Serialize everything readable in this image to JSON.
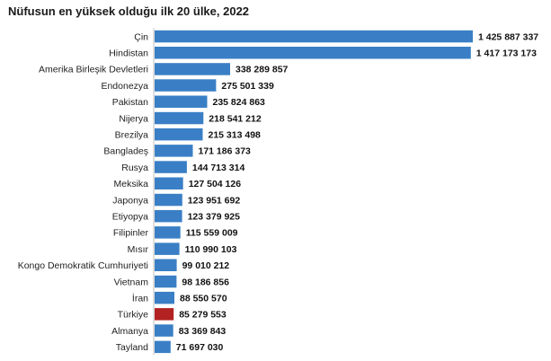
{
  "chart_data": {
    "type": "bar",
    "orientation": "horizontal",
    "title": "Nüfusun en yüksek olduğu ilk 20 ülke, 2022",
    "xlabel": "",
    "ylabel": "",
    "grid": false,
    "legend": "none",
    "xlim": [
      0,
      1425887337
    ],
    "colors": {
      "default": "#3a7fc5",
      "highlight": "#b22222"
    },
    "categories": [
      "Çin",
      "Hindistan",
      "Amerika Birleşik Devletleri",
      "Endonezya",
      "Pakistan",
      "Nijerya",
      "Brezilya",
      "Bangladeş",
      "Rusya",
      "Meksika",
      "Japonya",
      "Etiyopya",
      "Filipinler",
      "Mısır",
      "Kongo Demokratik Cumhuriyeti",
      "Vietnam",
      "İran",
      "Türkiye",
      "Almanya",
      "Tayland"
    ],
    "values": [
      1425887337,
      1417173173,
      338289857,
      275501339,
      235824863,
      218541212,
      215313498,
      171186373,
      144713314,
      127504126,
      123951692,
      123379925,
      115559009,
      110990103,
      99010212,
      98186856,
      88550570,
      85279553,
      83369843,
      71697030
    ],
    "value_labels": [
      "1 425 887 337",
      "1 417 173 173",
      "338 289 857",
      "275 501 339",
      "235 824 863",
      "218 541 212",
      "215 313 498",
      "171 186 373",
      "144 713 314",
      "127 504 126",
      "123 951 692",
      "123 379 925",
      "115 559 009",
      "110 990 103",
      "99 010 212",
      "98 186 856",
      "88 550 570",
      "85 279 553",
      "83 369 843",
      "71 697 030"
    ],
    "highlighted_category": "Türkiye"
  }
}
